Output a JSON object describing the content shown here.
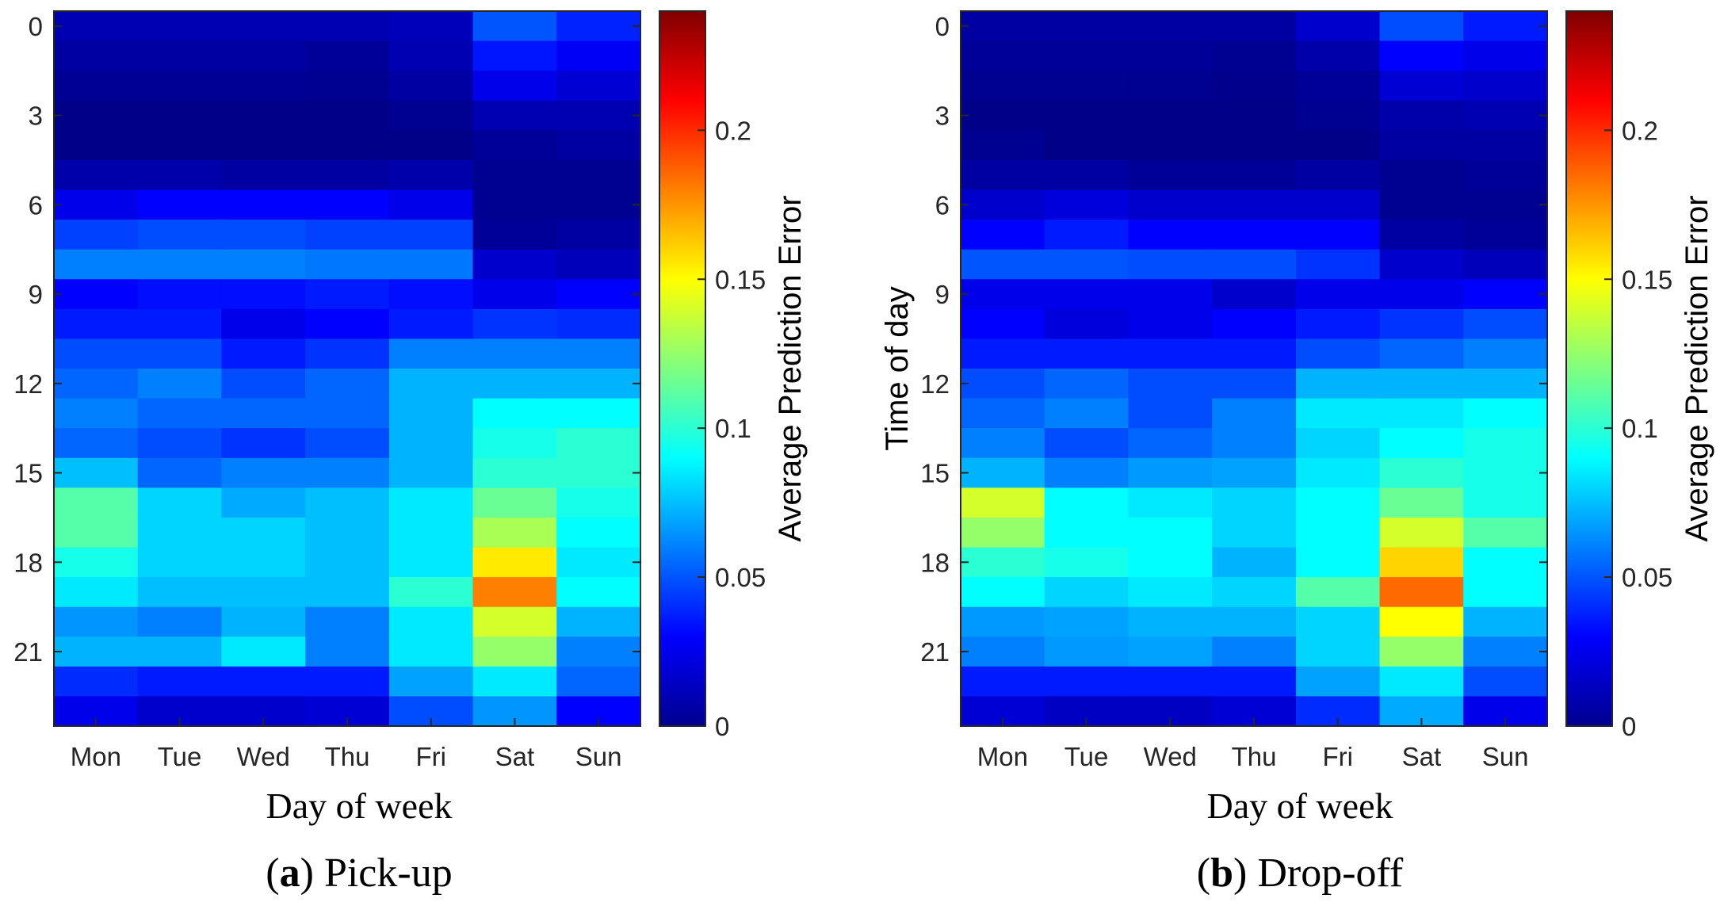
{
  "colormap": "jet",
  "colorbar_label": "Average Prediction Error",
  "colorbar_ticks": [
    "0",
    "0.05",
    "0.1",
    "0.15",
    "0.2"
  ],
  "colorbar_range": [
    0,
    0.24
  ],
  "chart_data": [
    {
      "type": "heatmap",
      "caption_letter": "a",
      "caption_open": "(",
      "caption_close": ")",
      "caption_text": " Pick-up",
      "xlabel": "Day of week",
      "ylabel": "",
      "x_categories": [
        "Mon",
        "Tue",
        "Wed",
        "Thu",
        "Fri",
        "Sat",
        "Sun"
      ],
      "y_categories": [
        "0",
        "1",
        "2",
        "3",
        "4",
        "5",
        "6",
        "7",
        "8",
        "9",
        "10",
        "11",
        "12",
        "13",
        "14",
        "15",
        "16",
        "17",
        "18",
        "19",
        "20",
        "21",
        "22",
        "23"
      ],
      "y_tick_labels": [
        "0",
        "3",
        "6",
        "9",
        "12",
        "15",
        "18",
        "21"
      ],
      "value_range": [
        0,
        0.24
      ],
      "values": [
        [
          0.012,
          0.012,
          0.012,
          0.012,
          0.014,
          0.05,
          0.038
        ],
        [
          0.008,
          0.008,
          0.008,
          0.006,
          0.012,
          0.035,
          0.028
        ],
        [
          0.005,
          0.005,
          0.005,
          0.004,
          0.008,
          0.025,
          0.02
        ],
        [
          0.002,
          0.002,
          0.002,
          0.002,
          0.004,
          0.012,
          0.012
        ],
        [
          0.002,
          0.002,
          0.002,
          0.002,
          0.002,
          0.006,
          0.008
        ],
        [
          0.01,
          0.01,
          0.008,
          0.008,
          0.01,
          0.004,
          0.004
        ],
        [
          0.025,
          0.03,
          0.03,
          0.03,
          0.025,
          0.004,
          0.004
        ],
        [
          0.045,
          0.048,
          0.048,
          0.045,
          0.045,
          0.006,
          0.008
        ],
        [
          0.06,
          0.06,
          0.06,
          0.058,
          0.058,
          0.018,
          0.014
        ],
        [
          0.03,
          0.033,
          0.033,
          0.036,
          0.033,
          0.025,
          0.03
        ],
        [
          0.036,
          0.036,
          0.025,
          0.03,
          0.036,
          0.042,
          0.04
        ],
        [
          0.048,
          0.048,
          0.036,
          0.042,
          0.06,
          0.06,
          0.06
        ],
        [
          0.054,
          0.06,
          0.048,
          0.054,
          0.072,
          0.072,
          0.072
        ],
        [
          0.06,
          0.054,
          0.054,
          0.054,
          0.072,
          0.09,
          0.09
        ],
        [
          0.054,
          0.048,
          0.042,
          0.048,
          0.072,
          0.095,
          0.1
        ],
        [
          0.075,
          0.054,
          0.06,
          0.06,
          0.072,
          0.1,
          0.1
        ],
        [
          0.11,
          0.08,
          0.07,
          0.075,
          0.085,
          0.115,
          0.095
        ],
        [
          0.11,
          0.08,
          0.08,
          0.075,
          0.085,
          0.13,
          0.09
        ],
        [
          0.095,
          0.08,
          0.08,
          0.075,
          0.085,
          0.155,
          0.085
        ],
        [
          0.085,
          0.075,
          0.075,
          0.075,
          0.1,
          0.18,
          0.09
        ],
        [
          0.065,
          0.06,
          0.072,
          0.06,
          0.085,
          0.14,
          0.072
        ],
        [
          0.072,
          0.072,
          0.085,
          0.06,
          0.085,
          0.125,
          0.06
        ],
        [
          0.04,
          0.036,
          0.036,
          0.036,
          0.068,
          0.085,
          0.054
        ],
        [
          0.025,
          0.018,
          0.018,
          0.02,
          0.048,
          0.065,
          0.03
        ]
      ]
    },
    {
      "type": "heatmap",
      "caption_letter": "b",
      "caption_open": "(",
      "caption_close": ")",
      "caption_text": " Drop-off",
      "xlabel": "Day of week",
      "ylabel": "Time of day",
      "x_categories": [
        "Mon",
        "Tue",
        "Wed",
        "Thu",
        "Fri",
        "Sat",
        "Sun"
      ],
      "y_categories": [
        "0",
        "1",
        "2",
        "3",
        "4",
        "5",
        "6",
        "7",
        "8",
        "9",
        "10",
        "11",
        "12",
        "13",
        "14",
        "15",
        "16",
        "17",
        "18",
        "19",
        "20",
        "21",
        "22",
        "23"
      ],
      "y_tick_labels": [
        "0",
        "3",
        "6",
        "9",
        "12",
        "15",
        "18",
        "21"
      ],
      "value_range": [
        0,
        0.24
      ],
      "values": [
        [
          0.008,
          0.008,
          0.008,
          0.008,
          0.018,
          0.048,
          0.036
        ],
        [
          0.006,
          0.006,
          0.006,
          0.004,
          0.01,
          0.03,
          0.025
        ],
        [
          0.004,
          0.004,
          0.004,
          0.003,
          0.006,
          0.02,
          0.018
        ],
        [
          0.002,
          0.002,
          0.002,
          0.002,
          0.004,
          0.01,
          0.012
        ],
        [
          0.004,
          0.002,
          0.002,
          0.002,
          0.002,
          0.008,
          0.008
        ],
        [
          0.008,
          0.008,
          0.006,
          0.006,
          0.008,
          0.004,
          0.006
        ],
        [
          0.018,
          0.022,
          0.018,
          0.018,
          0.018,
          0.004,
          0.004
        ],
        [
          0.03,
          0.036,
          0.03,
          0.03,
          0.03,
          0.008,
          0.006
        ],
        [
          0.05,
          0.05,
          0.048,
          0.048,
          0.042,
          0.018,
          0.014
        ],
        [
          0.025,
          0.025,
          0.025,
          0.018,
          0.025,
          0.025,
          0.03
        ],
        [
          0.03,
          0.022,
          0.025,
          0.03,
          0.036,
          0.042,
          0.048
        ],
        [
          0.036,
          0.036,
          0.036,
          0.036,
          0.048,
          0.054,
          0.06
        ],
        [
          0.048,
          0.054,
          0.048,
          0.048,
          0.072,
          0.072,
          0.072
        ],
        [
          0.054,
          0.06,
          0.048,
          0.06,
          0.085,
          0.085,
          0.09
        ],
        [
          0.06,
          0.048,
          0.054,
          0.06,
          0.08,
          0.09,
          0.095
        ],
        [
          0.072,
          0.06,
          0.066,
          0.068,
          0.085,
          0.1,
          0.095
        ],
        [
          0.14,
          0.09,
          0.085,
          0.08,
          0.09,
          0.115,
          0.095
        ],
        [
          0.125,
          0.09,
          0.09,
          0.08,
          0.09,
          0.14,
          0.11
        ],
        [
          0.1,
          0.095,
          0.09,
          0.072,
          0.09,
          0.16,
          0.09
        ],
        [
          0.09,
          0.08,
          0.085,
          0.08,
          0.11,
          0.185,
          0.09
        ],
        [
          0.066,
          0.068,
          0.072,
          0.072,
          0.08,
          0.15,
          0.072
        ],
        [
          0.06,
          0.066,
          0.068,
          0.06,
          0.08,
          0.125,
          0.06
        ],
        [
          0.036,
          0.036,
          0.036,
          0.036,
          0.068,
          0.085,
          0.048
        ],
        [
          0.02,
          0.016,
          0.016,
          0.02,
          0.04,
          0.07,
          0.025
        ]
      ]
    }
  ]
}
